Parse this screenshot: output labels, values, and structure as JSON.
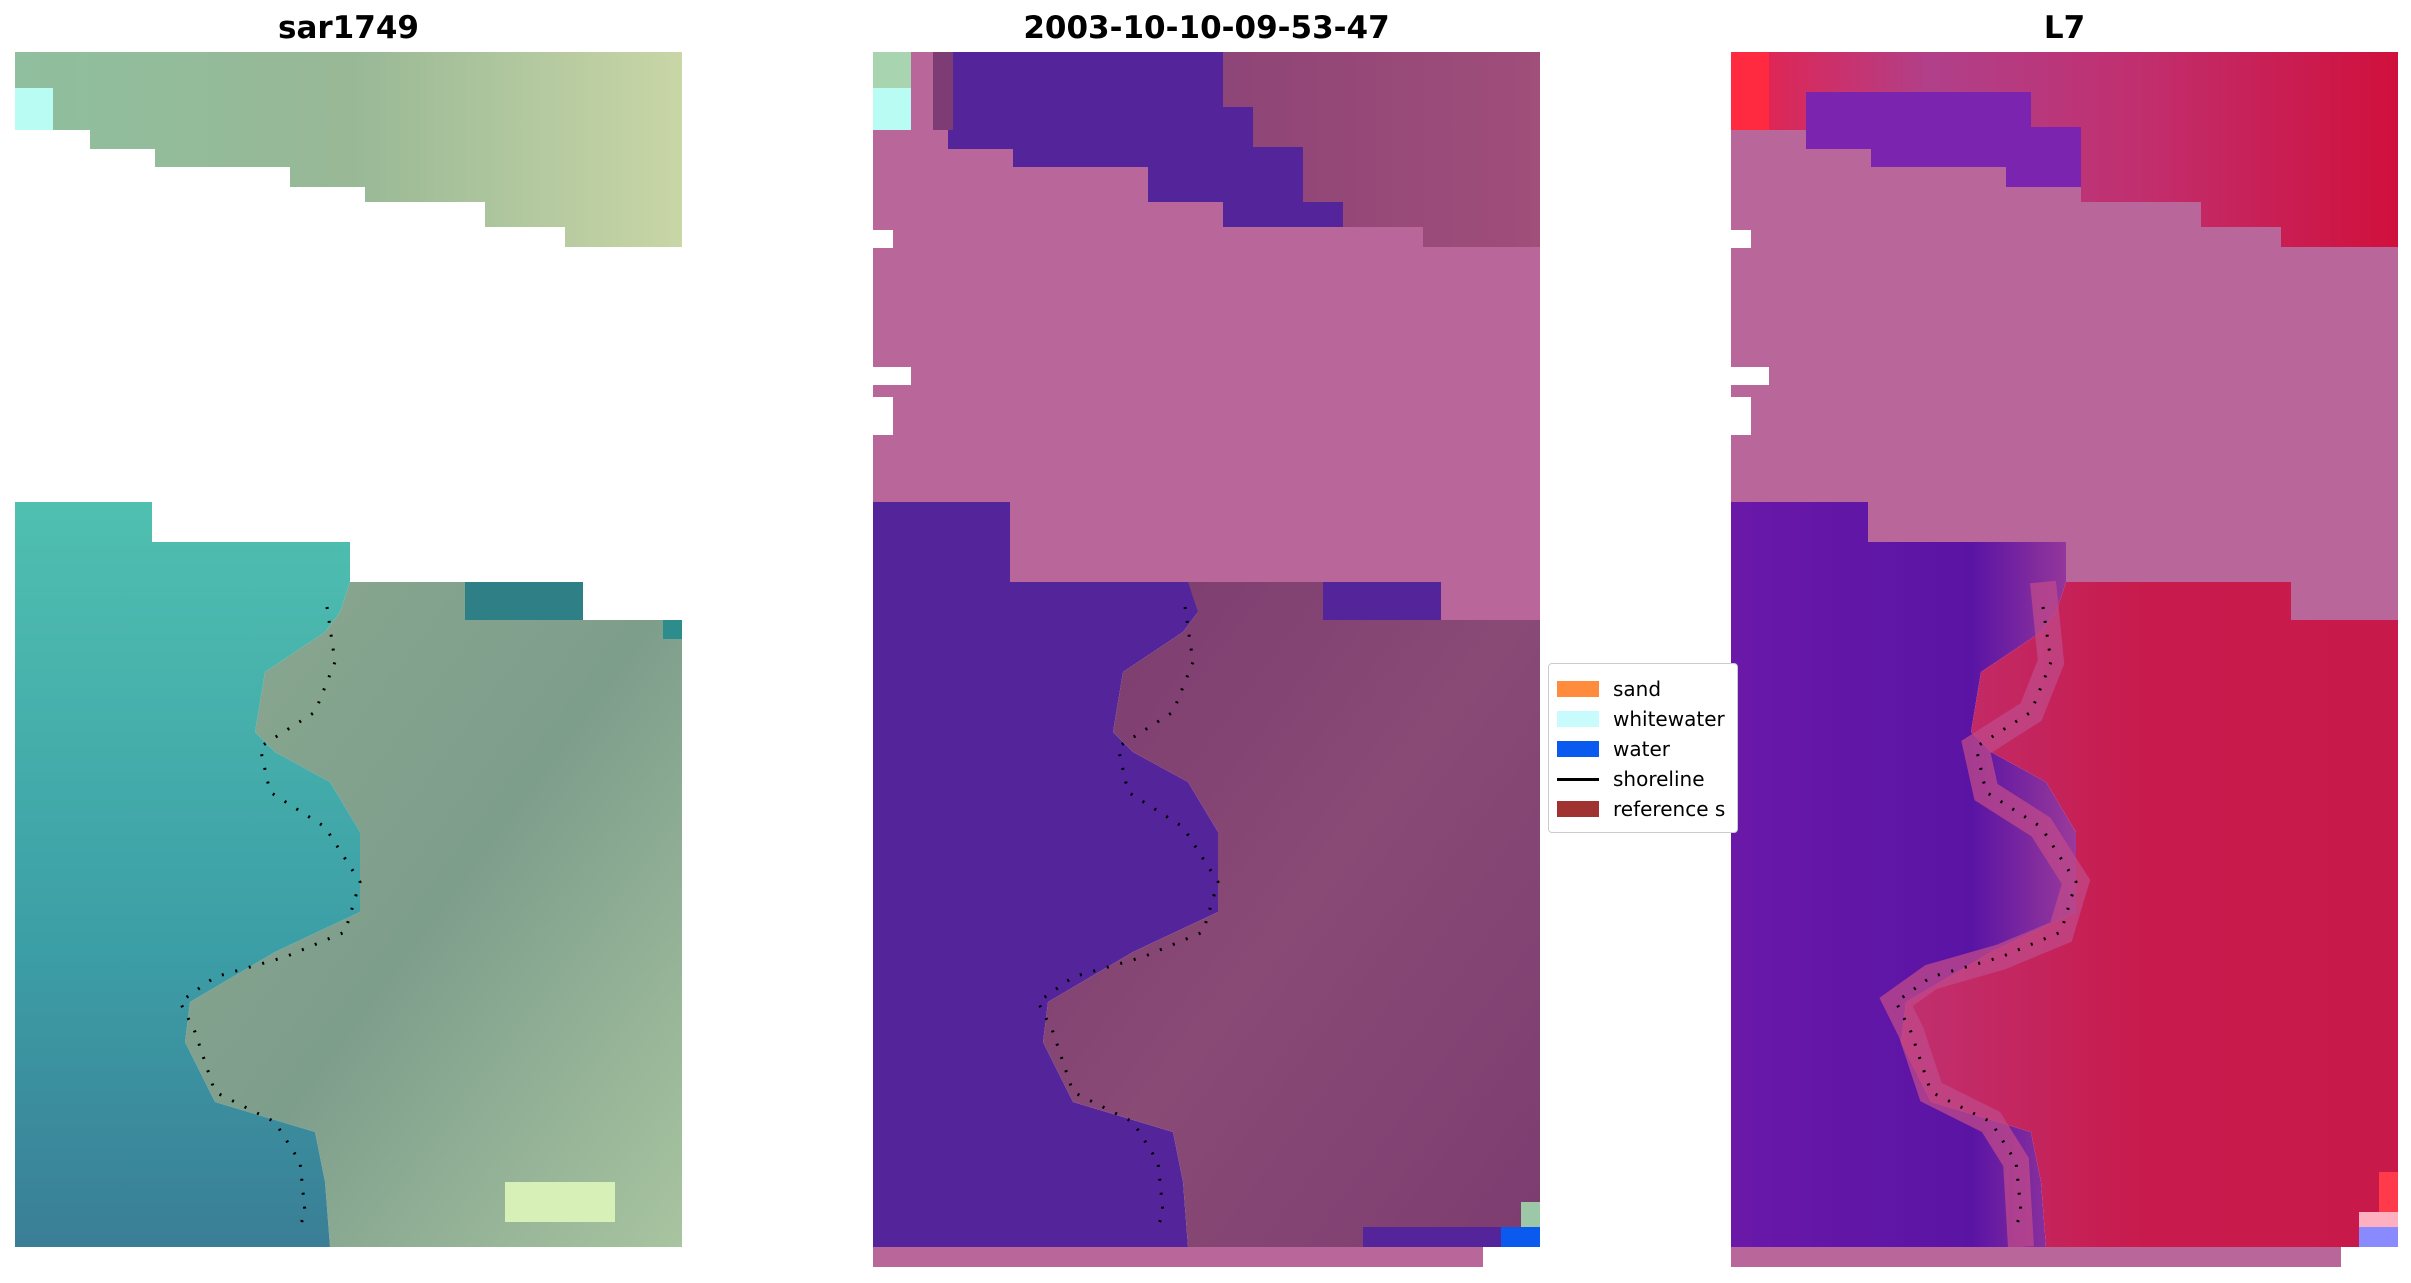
{
  "panels": [
    {
      "title": "sar1749"
    },
    {
      "title": "2003-10-10-09-53-47"
    },
    {
      "title": "L7"
    }
  ],
  "legend": {
    "items": [
      {
        "label": "sand",
        "color": "#ff8c3c",
        "kind": "patch"
      },
      {
        "label": "whitewater",
        "color": "#c8fcfc",
        "kind": "patch"
      },
      {
        "label": "water",
        "color": "#0a5af0",
        "kind": "patch"
      },
      {
        "label": "shoreline",
        "color": "#000000",
        "kind": "line"
      },
      {
        "label": "reference s",
        "color": "#a03232",
        "kind": "patch"
      }
    ]
  },
  "colors": {
    "sand_class_overlay": "#b9669a",
    "water_class_overlay": "#54249a",
    "rgb_land": "#7fa890",
    "rgb_water": "#45a0a0",
    "ndwi_land": "#c8164a",
    "ndwi_water": "#5a14a8"
  }
}
